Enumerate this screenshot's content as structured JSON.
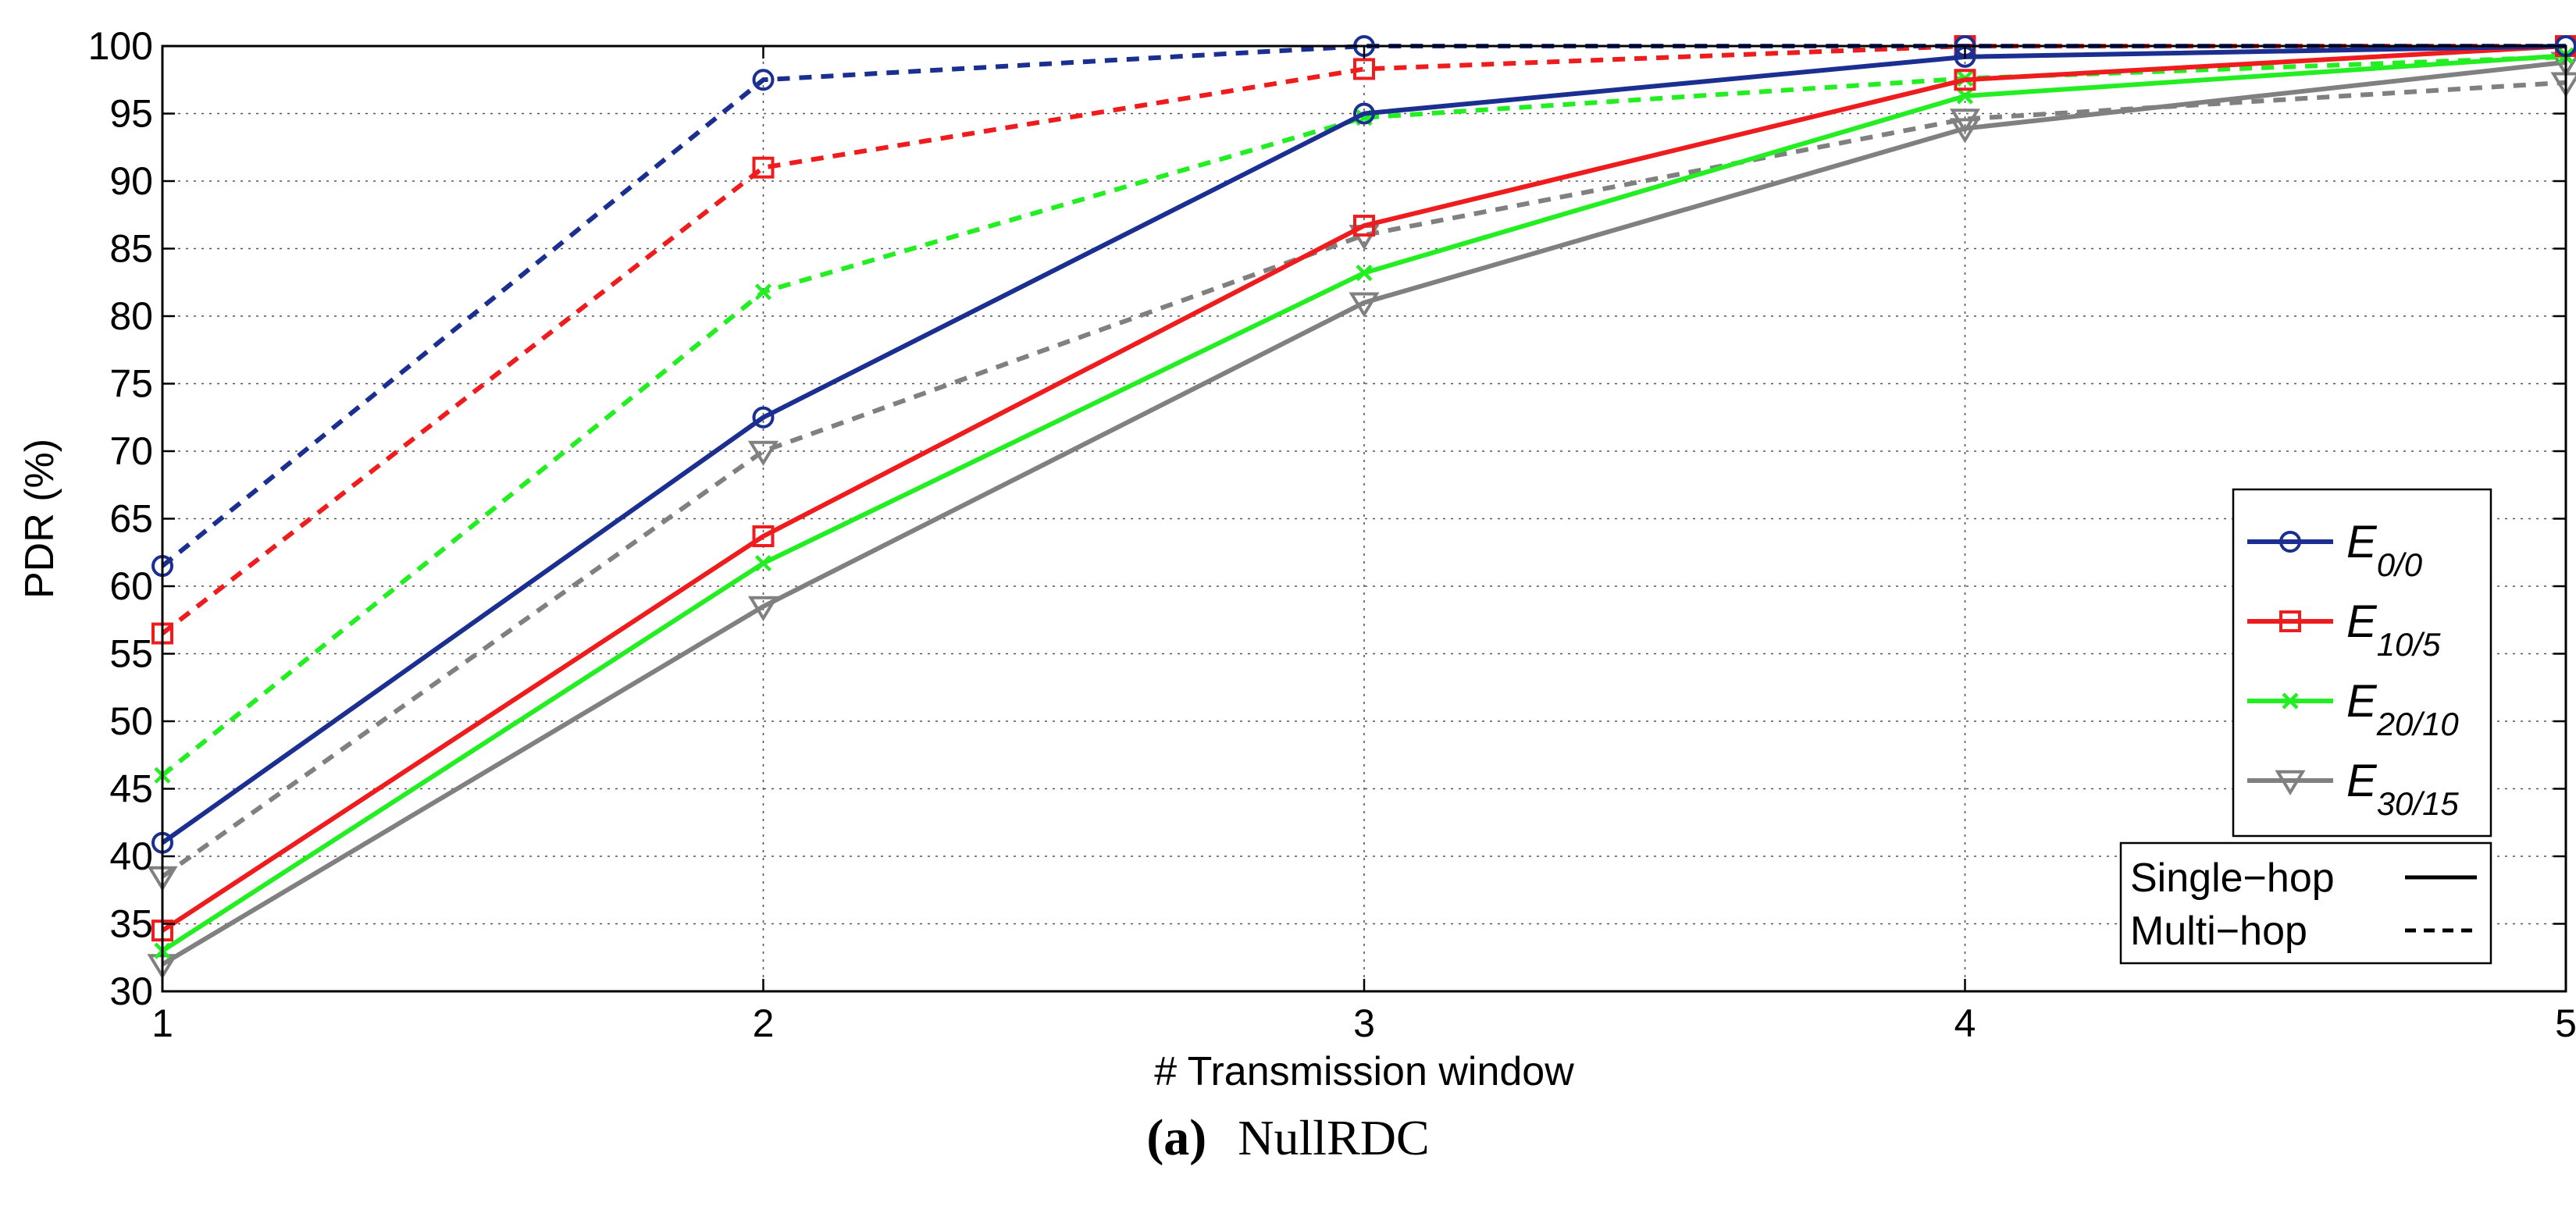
{
  "chart_data": {
    "type": "line",
    "xlabel": "# Transmission window",
    "ylabel": "PDR (%)",
    "x": [
      1,
      2,
      3,
      4,
      5
    ],
    "xticks": [
      "1",
      "2",
      "3",
      "4",
      "5"
    ],
    "ylim": [
      30,
      100
    ],
    "yticks": [
      "30",
      "35",
      "40",
      "45",
      "50",
      "55",
      "60",
      "65",
      "70",
      "75",
      "80",
      "85",
      "90",
      "95",
      "100"
    ],
    "grid": true,
    "legend_position": "right",
    "series": [
      {
        "name": "E0/0",
        "label_main": "E",
        "label_sub": "0/0",
        "color": "#1a2f8f",
        "marker": "circle",
        "style": "solid",
        "hop": "Single-hop",
        "values": [
          41,
          72.5,
          95,
          99.2,
          100
        ]
      },
      {
        "name": "E10/5",
        "label_main": "E",
        "label_sub": "10/5",
        "color": "#ee1c1c",
        "marker": "square",
        "style": "solid",
        "hop": "Single-hop",
        "values": [
          34.5,
          63.7,
          86.7,
          97.5,
          100
        ]
      },
      {
        "name": "E20/10",
        "label_main": "E",
        "label_sub": "20/10",
        "color": "#22ee22",
        "marker": "x",
        "style": "solid",
        "hop": "Single-hop",
        "values": [
          33,
          61.7,
          83.2,
          96.3,
          99.3
        ]
      },
      {
        "name": "E30/15",
        "label_main": "E",
        "label_sub": "30/15",
        "color": "#808080",
        "marker": "triangle-down",
        "style": "solid",
        "hop": "Single-hop",
        "values": [
          32,
          58.5,
          81,
          93.9,
          98.8
        ]
      },
      {
        "name": "E0/0 multi",
        "color": "#1a2f8f",
        "marker": "circle",
        "style": "dashed",
        "hop": "Multi-hop",
        "values": [
          61.5,
          97.5,
          100,
          100,
          100
        ]
      },
      {
        "name": "E10/5 multi",
        "color": "#ee1c1c",
        "marker": "square",
        "style": "dashed",
        "hop": "Multi-hop",
        "values": [
          56.5,
          91,
          98.3,
          100,
          100
        ]
      },
      {
        "name": "E20/10 multi",
        "color": "#22ee22",
        "marker": "x",
        "style": "dashed",
        "hop": "Multi-hop",
        "values": [
          46,
          81.8,
          94.7,
          97.6,
          99.2
        ]
      },
      {
        "name": "E30/15 multi",
        "color": "#808080",
        "marker": "triangle-down",
        "style": "dashed",
        "hop": "Multi-hop",
        "values": [
          38.5,
          70,
          86,
          94.6,
          97.3
        ]
      }
    ],
    "line_style_legend": [
      {
        "label": "Single−hop",
        "style": "solid"
      },
      {
        "label": "Multi−hop",
        "style": "dashed"
      }
    ]
  },
  "caption": {
    "letter": "(a)",
    "name": "NullRDC"
  }
}
